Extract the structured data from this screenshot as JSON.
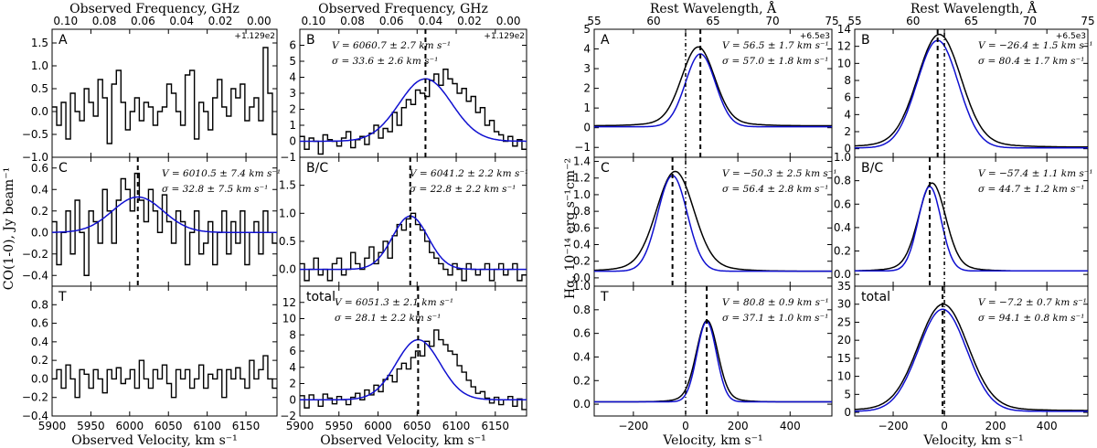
{
  "figure": {
    "left_block": {
      "top_axis_label": "Observed Frequency, GHz",
      "bottom_axis_label": "Observed Velocity, km s⁻¹",
      "y_axis_label": "CO(1-0), Jy beam⁻¹",
      "freq_ticks": [
        "0.10",
        "0.08",
        "0.06",
        "0.04",
        "0.02",
        "0.00"
      ],
      "freq_offset": "+1.129e2",
      "vel_ticks": [
        "5900",
        "5950",
        "6000",
        "6050",
        "6100",
        "6150"
      ]
    },
    "right_block": {
      "top_axis_label": "Rest Wavelength, Å",
      "bottom_axis_label": "Velocity, km s⁻¹",
      "y_axis_label": "Hα, 10⁻¹⁴ erg s⁻¹cm⁻²",
      "wl_ticks": [
        "55",
        "60",
        "65",
        "70",
        "75"
      ],
      "wl_offset": "+6.5e3",
      "vel_ticks": [
        "−200",
        "0",
        "200",
        "400"
      ]
    }
  },
  "chart_data": [
    {
      "type": "line",
      "panel": "A",
      "block": "CO",
      "xlim": [
        5900,
        6190
      ],
      "ylim": [
        -1.0,
        1.8
      ],
      "yticks": [
        "−1.0",
        "−0.5",
        "0.0",
        "0.5",
        "1.0",
        "1.5"
      ],
      "spectrum": [
        0.1,
        -0.3,
        0.2,
        -0.6,
        0.4,
        0.0,
        -0.2,
        0.5,
        0.2,
        -0.1,
        0.7,
        0.3,
        -0.7,
        0.6,
        0.9,
        0.2,
        -0.4,
        0.0,
        0.3,
        -0.2,
        0.2,
        0.1,
        -0.3,
        0.0,
        0.1,
        0.6,
        0.4,
        0.0,
        -0.3,
        0.8,
        0.9,
        -0.6,
        0.2,
        0.0,
        -0.4,
        0.3,
        0.7,
        0.1,
        -0.1,
        0.5,
        0.3,
        0.6,
        -0.2,
        0.1,
        0.3,
        -0.2,
        1.4,
        0.4,
        -0.5
      ]
    },
    {
      "type": "line",
      "panel": "B",
      "block": "CO",
      "xlim": [
        5900,
        6190
      ],
      "ylim": [
        -1.0,
        7.0
      ],
      "yticks": [
        "−1",
        "0",
        "1",
        "2",
        "3",
        "4",
        "5",
        "6"
      ],
      "annotation": [
        "V = 6060.7 ± 2.7 km s⁻¹",
        "σ = 33.6 ± 2.6 km s⁻¹"
      ],
      "gauss": {
        "amp": 3.9,
        "mu": 6060.7,
        "sigma": 33.6,
        "base": 0.0
      },
      "vline": 6060.7,
      "spectrum": [
        0.3,
        -0.5,
        0.2,
        0.0,
        -0.8,
        0.4,
        0.1,
        0.0,
        -0.3,
        0.2,
        0.6,
        -0.4,
        0.1,
        0.3,
        -0.2,
        0.5,
        1.0,
        0.2,
        0.8,
        0.6,
        1.8,
        1.0,
        2.1,
        2.6,
        2.3,
        3.2,
        3.0,
        2.8,
        3.8,
        4.2,
        3.5,
        4.5,
        3.9,
        3.6,
        3.0,
        3.3,
        2.5,
        2.8,
        1.8,
        2.1,
        1.0,
        1.3,
        0.6,
        0.4,
        0.0,
        0.3,
        -0.3,
        0.1,
        -0.5
      ]
    },
    {
      "type": "line",
      "panel": "C",
      "block": "CO",
      "xlim": [
        5900,
        6190
      ],
      "ylim": [
        -0.5,
        0.7
      ],
      "yticks": [
        "−0.4",
        "−0.2",
        "0.0",
        "0.2",
        "0.4",
        "0.6"
      ],
      "annotation": [
        "V = 6010.5 ± 7.4 km s⁻¹",
        "σ = 32.8 ± 7.5 km s⁻¹"
      ],
      "gauss": {
        "amp": 0.33,
        "mu": 6010.5,
        "sigma": 32.8,
        "base": 0.0
      },
      "vline": 6010.5,
      "spectrum": [
        0.1,
        -0.3,
        0.0,
        0.2,
        -0.2,
        0.3,
        0.0,
        -0.4,
        0.2,
        0.1,
        -0.1,
        0.4,
        0.2,
        -0.1,
        0.3,
        0.5,
        0.4,
        0.2,
        0.55,
        0.3,
        0.1,
        0.4,
        0.2,
        0.0,
        0.35,
        0.1,
        -0.1,
        0.2,
        0.1,
        -0.3,
        0.0,
        0.2,
        -0.2,
        -0.1,
        0.1,
        -0.3,
        0.0,
        0.2,
        -0.2,
        0.1,
        -0.1,
        0.2,
        -0.3,
        0.0,
        0.1,
        -0.2,
        0.2,
        0.0,
        -0.1
      ]
    },
    {
      "type": "line",
      "panel": "B/C",
      "block": "CO",
      "xlim": [
        5900,
        6190
      ],
      "ylim": [
        -0.3,
        2.0
      ],
      "yticks": [
        "0.0",
        "0.5",
        "1.0",
        "1.5"
      ],
      "annotation": [
        "V = 6041.2 ± 2.2 km s⁻¹",
        "σ = 22.8 ± 2.2 km s⁻¹"
      ],
      "gauss": {
        "amp": 0.95,
        "mu": 6041.2,
        "sigma": 22.8,
        "base": 0.0
      },
      "vline": 6041.2,
      "spectrum": [
        0.1,
        -0.2,
        0.0,
        0.2,
        -0.1,
        0.0,
        -0.2,
        0.1,
        0.2,
        -0.1,
        0.0,
        0.3,
        0.1,
        0.0,
        0.2,
        0.4,
        0.1,
        0.3,
        0.5,
        0.2,
        0.6,
        0.8,
        0.7,
        0.9,
        1.0,
        0.8,
        0.7,
        0.5,
        0.3,
        0.2,
        0.1,
        0.0,
        -0.1,
        0.1,
        0.0,
        -0.2,
        0.1,
        0.0,
        -0.1,
        0.0,
        0.1,
        -0.2,
        0.0,
        0.1,
        -0.1,
        0.0,
        0.1,
        -0.2,
        -0.1
      ]
    },
    {
      "type": "line",
      "panel": "T",
      "block": "CO",
      "xlim": [
        5900,
        6190
      ],
      "ylim": [
        -0.4,
        1.0
      ],
      "yticks": [
        "−0.4",
        "−0.2",
        "0.0",
        "0.2",
        "0.4",
        "0.6",
        "0.8"
      ],
      "spectrum": [
        0.0,
        0.1,
        -0.1,
        0.15,
        0.0,
        -0.2,
        0.1,
        0.05,
        -0.1,
        0.1,
        0.0,
        -0.15,
        0.1,
        0.0,
        0.12,
        -0.05,
        0.0,
        0.1,
        -0.1,
        0.2,
        0.0,
        -0.1,
        0.1,
        0.0,
        0.15,
        -0.05,
        -0.2,
        0.1,
        0.0,
        0.1,
        -0.1,
        0.0,
        0.15,
        -0.1,
        0.05,
        0.0,
        0.1,
        -0.2,
        0.1,
        0.0,
        0.12,
        0.0,
        -0.1,
        0.2,
        0.0,
        0.1,
        0.25,
        0.0,
        -0.1
      ]
    },
    {
      "type": "line",
      "panel": "total",
      "block": "CO",
      "xlim": [
        5900,
        6190
      ],
      "ylim": [
        -2.0,
        14.0
      ],
      "yticks": [
        "−2",
        "0",
        "2",
        "4",
        "6",
        "8",
        "10",
        "12"
      ],
      "annotation": [
        "V = 6051.3 ± 2.1 km s⁻¹",
        "σ = 28.1 ± 2.2 km s⁻¹"
      ],
      "gauss": {
        "amp": 7.4,
        "mu": 6051.3,
        "sigma": 28.1,
        "base": 0.0
      },
      "vline": 6051.3,
      "spectrum": [
        0.5,
        -1.0,
        0.6,
        0.0,
        -0.8,
        0.7,
        0.2,
        -0.5,
        0.4,
        0.0,
        -0.6,
        0.3,
        0.8,
        0.0,
        1.2,
        0.6,
        1.8,
        1.0,
        2.5,
        3.0,
        2.2,
        3.8,
        4.5,
        3.8,
        5.2,
        6.0,
        5.4,
        7.2,
        6.6,
        8.6,
        7.4,
        6.8,
        6.0,
        5.6,
        4.2,
        3.4,
        2.4,
        1.6,
        0.8,
        1.0,
        0.2,
        -0.4,
        0.3,
        -0.6,
        0.0,
        0.4,
        -0.8,
        0.1,
        -1.2
      ]
    },
    {
      "type": "line",
      "panel": "A",
      "block": "Ha",
      "xlim": [
        -350,
        560
      ],
      "ylim": [
        -1.5,
        5.0
      ],
      "yticks": [
        "−1",
        "0",
        "1",
        "2",
        "3",
        "4",
        "5"
      ],
      "annotation": [
        "V = 56.5 ± 1.7 km s⁻¹",
        "σ = 57.0 ± 1.8 km s⁻¹"
      ],
      "data": {
        "amp": 3.75,
        "mu": 48,
        "sigma": 62,
        "base": 0.1,
        "wing": 0.25
      },
      "fit": {
        "amp": 3.7,
        "mu": 56.5,
        "sigma": 57.0,
        "base": 0.05
      },
      "vline_dashed": 56.5,
      "vline_dotted": 0
    },
    {
      "type": "line",
      "panel": "B",
      "block": "Ha",
      "xlim": [
        -350,
        560
      ],
      "ylim": [
        -1.0,
        14.0
      ],
      "yticks": [
        "0",
        "2",
        "4",
        "6",
        "8",
        "10",
        "12",
        "14"
      ],
      "annotation": [
        "V = −26.4 ± 1.5 km s⁻¹",
        "σ = 80.4 ± 1.7 km s⁻¹"
      ],
      "data": {
        "amp": 12.6,
        "mu": -20,
        "sigma": 84,
        "base": 0.2,
        "wing": 0.6
      },
      "fit": {
        "amp": 12.6,
        "mu": -26.4,
        "sigma": 80.4,
        "base": 0.1
      },
      "vline_dashed": -26.4,
      "vline_dotted": 0
    },
    {
      "type": "line",
      "panel": "C",
      "block": "Ha",
      "xlim": [
        -350,
        560
      ],
      "ylim": [
        -0.1,
        1.45
      ],
      "yticks": [
        "0.0",
        "0.2",
        "0.4",
        "0.6",
        "0.8",
        "1.0",
        "1.2",
        "1.4"
      ],
      "annotation": [
        "V = −50.3 ± 2.5 km s⁻¹",
        "σ = 56.4 ± 2.8 km s⁻¹"
      ],
      "data": {
        "amp": 1.12,
        "mu": -40,
        "sigma": 70,
        "base": 0.08,
        "wing": 0.08
      },
      "fit": {
        "amp": 1.15,
        "mu": -50.3,
        "sigma": 56.4,
        "base": 0.08
      },
      "vline_dashed": -50.3,
      "vline_dotted": 0
    },
    {
      "type": "line",
      "panel": "B/C",
      "block": "Ha",
      "xlim": [
        -350,
        560
      ],
      "ylim": [
        -0.1,
        1.0
      ],
      "yticks": [
        "0.0",
        "0.2",
        "0.4",
        "0.6",
        "0.8",
        "1.0"
      ],
      "annotation": [
        "V = −57.4 ± 1.1 km s⁻¹",
        "σ = 44.7 ± 1.2 km s⁻¹"
      ],
      "data": {
        "amp": 0.7,
        "mu": -48,
        "sigma": 52,
        "base": 0.03,
        "wing": 0.05
      },
      "fit": {
        "amp": 0.72,
        "mu": -57.4,
        "sigma": 44.7,
        "base": 0.03
      },
      "vline_dashed": -57.4,
      "vline_dotted": 0
    },
    {
      "type": "line",
      "panel": "T",
      "block": "Ha",
      "xlim": [
        -350,
        560
      ],
      "ylim": [
        -0.1,
        1.0
      ],
      "yticks": [
        "0.0",
        "0.2",
        "0.4",
        "0.6",
        "0.8",
        "1.0"
      ],
      "annotation": [
        "V = 80.8 ± 0.9 km s⁻¹",
        "σ = 37.1 ± 1.0 km s⁻¹"
      ],
      "data": {
        "amp": 0.65,
        "mu": 82,
        "sigma": 40,
        "base": 0.02,
        "wing": 0.04
      },
      "fit": {
        "amp": 0.68,
        "mu": 80.8,
        "sigma": 37.1,
        "base": 0.02
      },
      "vline_dashed": 80.8,
      "vline_dotted": 0
    },
    {
      "type": "line",
      "panel": "total",
      "block": "Ha",
      "xlim": [
        -350,
        560
      ],
      "ylim": [
        -1.0,
        35.0
      ],
      "yticks": [
        "0",
        "5",
        "10",
        "15",
        "20",
        "25",
        "30",
        "35"
      ],
      "annotation": [
        "V = −7.2 ± 0.7 km s⁻¹",
        "σ = 94.1 ± 0.8 km s⁻¹"
      ],
      "data": {
        "amp": 28.5,
        "mu": -5,
        "sigma": 96,
        "base": 0.5,
        "wing": 1.0
      },
      "fit": {
        "amp": 28.3,
        "mu": -7.2,
        "sigma": 94.1,
        "base": 0.3
      },
      "vline_dashed": -7.2,
      "vline_dotted": 0
    }
  ]
}
